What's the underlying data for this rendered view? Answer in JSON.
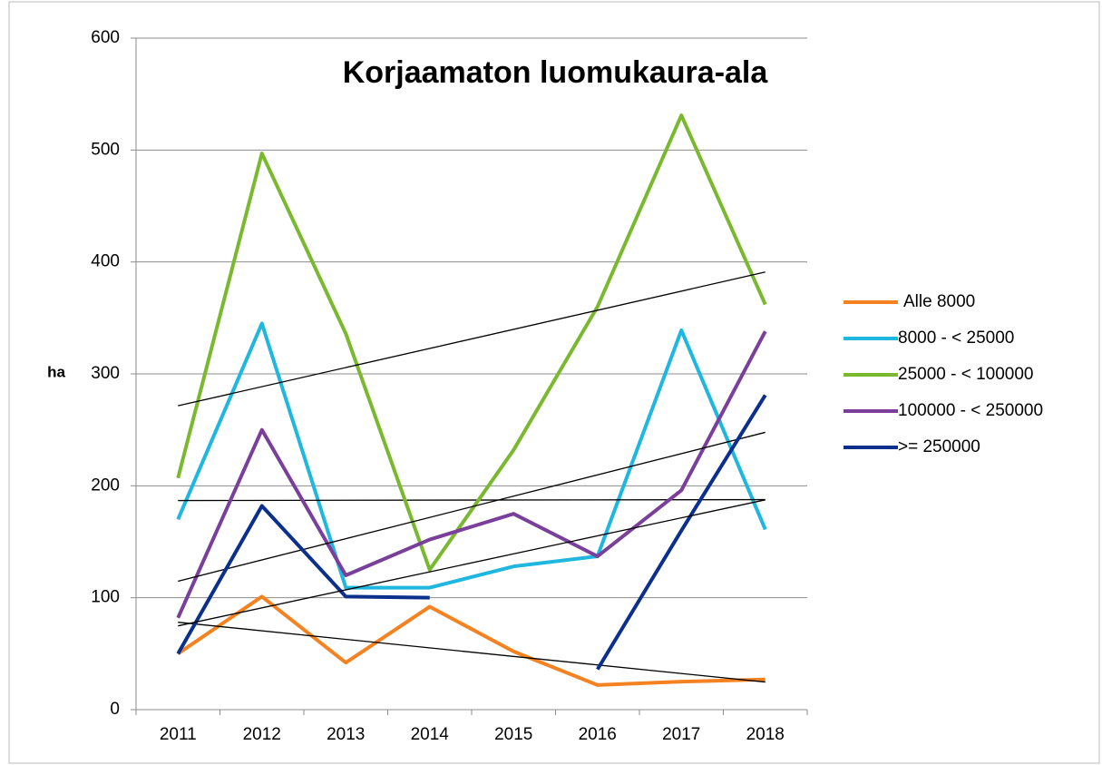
{
  "chart_data": {
    "type": "line",
    "title": "Korjaamaton luomukaura-ala",
    "y_label": "ha",
    "categories": [
      "2011",
      "2012",
      "2013",
      "2014",
      "2015",
      "2016",
      "2017",
      "2018"
    ],
    "series": [
      {
        "name": "Alle 8000",
        "color": "#f58220",
        "values": [
          50,
          101,
          42,
          92,
          52,
          22,
          25,
          27
        ]
      },
      {
        "name": "8000 - < 25000",
        "color": "#1fb6e0",
        "values": [
          170,
          345,
          109,
          109,
          128,
          137,
          339,
          161
        ]
      },
      {
        "name": "25000 - < 100000",
        "color": "#7ab92f",
        "values": [
          207,
          497,
          336,
          125,
          232,
          360,
          531,
          362
        ]
      },
      {
        "name": "100000 - < 250000",
        "color": "#7a3f9a",
        "values": [
          82,
          250,
          120,
          152,
          175,
          137,
          196,
          338
        ]
      },
      {
        "name": ">= 250000",
        "color": "#0b2f8c",
        "values": [
          50,
          182,
          101,
          100,
          null,
          36,
          160,
          281
        ]
      }
    ],
    "ylim": [
      0,
      600
    ],
    "yticks": [
      0,
      100,
      200,
      300,
      400,
      500,
      600
    ],
    "grid": true,
    "trendline": "linear",
    "legend": "right"
  }
}
